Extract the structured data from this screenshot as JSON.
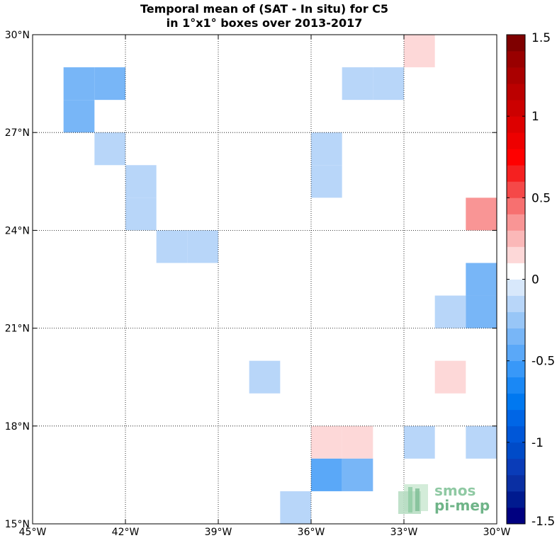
{
  "chart_data": {
    "type": "heatmap",
    "title_lines": [
      "Temporal mean of (SAT - In situ) for C5",
      "in 1°x1° boxes over 2013-2017"
    ],
    "xlim": [
      -45,
      -30
    ],
    "ylim": [
      15,
      30
    ],
    "x_ticks": [
      -45,
      -42,
      -39,
      -36,
      -33,
      -30
    ],
    "x_tick_labels": [
      "45°W",
      "42°W",
      "39°W",
      "36°W",
      "33°W",
      "30°W"
    ],
    "y_ticks": [
      15,
      18,
      21,
      24,
      27,
      30
    ],
    "y_tick_labels": [
      "15°N",
      "18°N",
      "21°N",
      "24°N",
      "27°N",
      "30°N"
    ],
    "grid": true,
    "colorbar": {
      "min": -1.5,
      "max": 1.5,
      "levels": 30,
      "ticks": [
        1.5,
        1,
        0.5,
        0,
        -0.5,
        -1,
        -1.5
      ],
      "tick_labels": [
        "1.5",
        "1",
        "0.5",
        "0",
        "-0.5",
        "-1",
        "-1.5"
      ],
      "colors": [
        "#000080",
        "#001a8f",
        "#0a2fa3",
        "#0a3cb8",
        "#004bc8",
        "#0057d8",
        "#0066e6",
        "#0078f0",
        "#1a88f5",
        "#3898f8",
        "#5aa8f8",
        "#78b6f7",
        "#98c6f7",
        "#b8d6f9",
        "#d8e8fb",
        "#ffffff",
        "#fdd8d8",
        "#fbb8b8",
        "#f99595",
        "#f77070",
        "#f54848",
        "#f52020",
        "#ff0000",
        "#ee0000",
        "#dd0000",
        "#cc0000",
        "#bb0000",
        "#aa0000",
        "#990000",
        "#7f0000"
      ]
    },
    "cells": [
      {
        "lon": -44,
        "lat": 28,
        "value": -0.3
      },
      {
        "lon": -43,
        "lat": 28,
        "value": -0.3
      },
      {
        "lon": -44,
        "lat": 27,
        "value": -0.3
      },
      {
        "lon": -43,
        "lat": 26,
        "value": -0.1
      },
      {
        "lon": -42,
        "lat": 25,
        "value": -0.1
      },
      {
        "lon": -42,
        "lat": 24,
        "value": -0.1
      },
      {
        "lon": -41,
        "lat": 23,
        "value": -0.1
      },
      {
        "lon": -40,
        "lat": 23,
        "value": -0.1
      },
      {
        "lon": -38,
        "lat": 19,
        "value": -0.1
      },
      {
        "lon": -37,
        "lat": 15,
        "value": -0.1
      },
      {
        "lon": -36,
        "lat": 26,
        "value": -0.1
      },
      {
        "lon": -36,
        "lat": 25,
        "value": -0.1
      },
      {
        "lon": -36,
        "lat": 17,
        "value": 0.1
      },
      {
        "lon": -35,
        "lat": 17,
        "value": 0.1
      },
      {
        "lon": -36,
        "lat": 16,
        "value": -0.45
      },
      {
        "lon": -35,
        "lat": 16,
        "value": -0.3
      },
      {
        "lon": -35,
        "lat": 28,
        "value": -0.1
      },
      {
        "lon": -34,
        "lat": 28,
        "value": -0.1
      },
      {
        "lon": -33,
        "lat": 29,
        "value": 0.1
      },
      {
        "lon": -33,
        "lat": 17,
        "value": -0.1
      },
      {
        "lon": -32,
        "lat": 21,
        "value": -0.1
      },
      {
        "lon": -32,
        "lat": 19,
        "value": 0.1
      },
      {
        "lon": -31,
        "lat": 24,
        "value": 0.3
      },
      {
        "lon": -31,
        "lat": 22,
        "value": -0.3
      },
      {
        "lon": -31,
        "lat": 21,
        "value": -0.3
      },
      {
        "lon": -31,
        "lat": 17,
        "value": -0.1
      }
    ]
  },
  "logo": {
    "line1": "smos",
    "line2": "pi-mep"
  }
}
